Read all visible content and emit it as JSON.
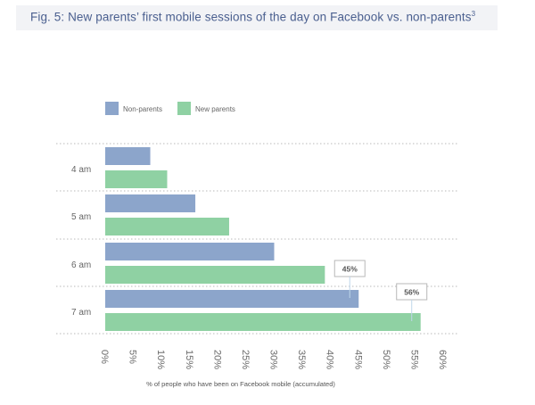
{
  "page": {
    "title_main": "Fig. 5: New parents’ first mobile sessions of the day on Facebook vs. non-parents",
    "title_sup": "3"
  },
  "colors": {
    "non_parents": "#8ca5cb",
    "new_parents": "#8fd1a3",
    "grid": "#c7c7c7",
    "title_bg": "#f2f3f6",
    "title_text": "#4a5f8f"
  },
  "chart_data": {
    "type": "bar",
    "orientation": "horizontal",
    "categories": [
      "4 am",
      "5 am",
      "6 am",
      "7 am"
    ],
    "series": [
      {
        "name": "Non-parents",
        "values": [
          8,
          16,
          30,
          45
        ]
      },
      {
        "name": "New parents",
        "values": [
          11,
          22,
          39,
          56
        ]
      }
    ],
    "x_ticks": [
      "0%",
      "5%",
      "10%",
      "15%",
      "20%",
      "25%",
      "30%",
      "35%",
      "40%",
      "45%",
      "50%",
      "55%",
      "60%"
    ],
    "xlim": [
      0,
      60
    ],
    "xlabel": "% of people who have been on Facebook mobile (accumulated)",
    "legend_position": "top-left",
    "grid": true,
    "annotations": [
      {
        "label": "45%",
        "series": "Non-parents",
        "category": "7 am"
      },
      {
        "label": "56%",
        "series": "New parents",
        "category": "7 am"
      }
    ]
  }
}
